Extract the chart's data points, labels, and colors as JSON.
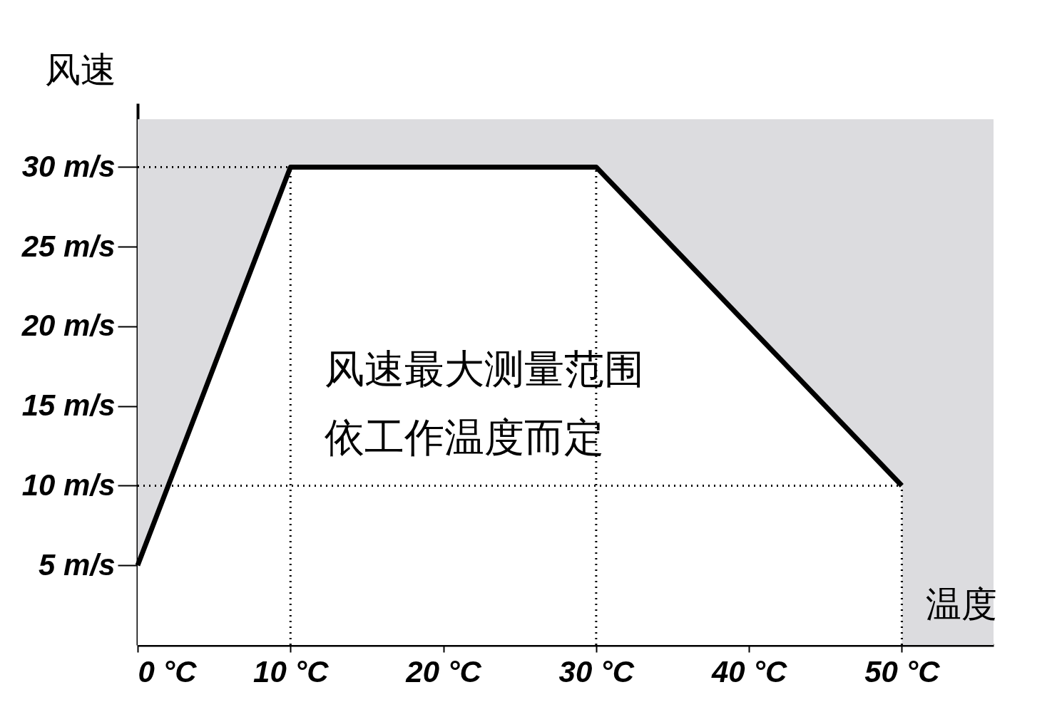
{
  "chart_data": {
    "type": "area",
    "xlabel": "温度",
    "ylabel": "风速",
    "x": [
      0,
      10,
      30,
      50
    ],
    "series": [
      {
        "color": "#000000",
        "values": [
          5,
          30,
          30,
          10
        ]
      }
    ],
    "xlim": [
      0,
      56
    ],
    "ylim": [
      0,
      34
    ],
    "xticks": [
      {
        "value": 0,
        "label": "0 °C"
      },
      {
        "value": 10,
        "label": "10 °C"
      },
      {
        "value": 20,
        "label": "20 °C"
      },
      {
        "value": 30,
        "label": "30 °C"
      },
      {
        "value": 40,
        "label": "40 °C"
      },
      {
        "value": 50,
        "label": "50 °C"
      }
    ],
    "yticks": [
      {
        "value": 5,
        "label": "5 m/s"
      },
      {
        "value": 10,
        "label": "10 m/s"
      },
      {
        "value": 15,
        "label": "15 m/s"
      },
      {
        "value": 20,
        "label": "20 m/s"
      },
      {
        "value": 25,
        "label": "25 m/s"
      },
      {
        "value": 30,
        "label": "30 m/s"
      }
    ],
    "bands": [
      {
        "axis": "y",
        "from": 0,
        "to": 33,
        "color": "#dcdcdf"
      }
    ],
    "ref_lines": [
      {
        "axis": "y",
        "value": 30,
        "color": "#000000",
        "line_style": "dotted"
      },
      {
        "axis": "y",
        "value": 10,
        "color": "#000000",
        "line_style": "dotted"
      },
      {
        "axis": "x",
        "value": 10,
        "color": "#000000",
        "line_style": "dotted"
      },
      {
        "axis": "x",
        "value": 30,
        "color": "#000000",
        "line_style": "dotted"
      },
      {
        "axis": "x",
        "value": 50,
        "color": "#000000",
        "line_style": "dotted"
      }
    ],
    "annotations": [
      "风速最大测量范围",
      "依工作温度而定"
    ],
    "grid": false,
    "marker": "none",
    "line_style": "solid"
  }
}
